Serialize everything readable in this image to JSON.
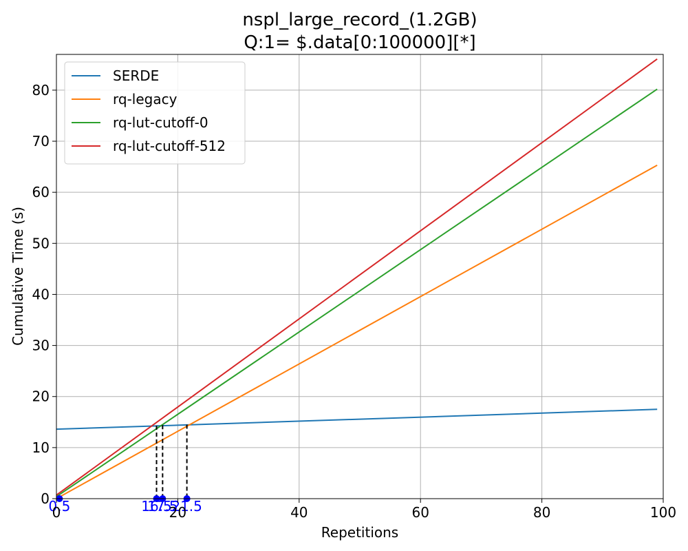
{
  "chart_data": {
    "type": "line",
    "title_line1": "nspl_large_record_(1.2GB)",
    "title_line2": "Q:1= $.data[0:100000][*]",
    "xlabel": "Repetitions",
    "ylabel": "Cumulative Time (s)",
    "xlim": [
      0,
      100
    ],
    "ylim": [
      0,
      87
    ],
    "xticks": [
      0,
      20,
      40,
      60,
      80,
      100
    ],
    "yticks": [
      0,
      10,
      20,
      30,
      40,
      50,
      60,
      70,
      80
    ],
    "grid": true,
    "legend_position": "top-left",
    "series": [
      {
        "name": "SERDE",
        "color": "#1f77b4",
        "x": [
          0,
          99
        ],
        "y": [
          13.6,
          17.5
        ]
      },
      {
        "name": "rq-legacy",
        "color": "#ff7f0e",
        "x": [
          0,
          99
        ],
        "y": [
          0.0,
          65.3
        ]
      },
      {
        "name": "rq-lut-cutoff-0",
        "color": "#2ca02c",
        "x": [
          0,
          99
        ],
        "y": [
          0.4,
          80.2
        ]
      },
      {
        "name": "rq-lut-cutoff-512",
        "color": "#d62728",
        "x": [
          0,
          99
        ],
        "y": [
          0.7,
          86.1
        ]
      }
    ],
    "crossovers": [
      {
        "x": 0.5,
        "y": 0,
        "label": "0.5"
      },
      {
        "x": 16.5,
        "y": 14.3,
        "label": "16.5"
      },
      {
        "x": 17.5,
        "y": 14.4,
        "label": "17.5"
      },
      {
        "x": 21.5,
        "y": 14.5,
        "label": "21.5"
      }
    ],
    "crossover_color": "#0000ff"
  }
}
